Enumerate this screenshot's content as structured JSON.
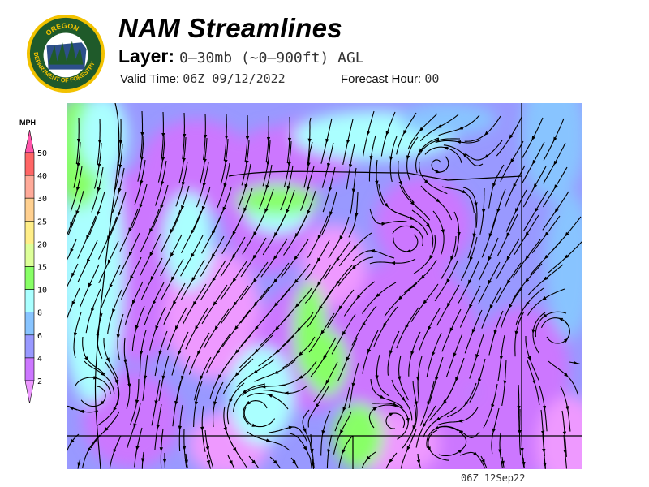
{
  "header": {
    "logo_text": "OREGON DEPARTMENT OF FORESTRY",
    "title": "NAM Streamlines",
    "layer_label": "Layer:",
    "layer_value": "0–30mb (~0–900ft) AGL",
    "valid_label": "Valid Time:",
    "valid_value": "06Z 09/12/2022",
    "forecast_label": "Forecast Hour:",
    "forecast_value": "00"
  },
  "colorbar": {
    "unit": "MPH",
    "labels": [
      "50",
      "40",
      "30",
      "25",
      "20",
      "15",
      "10",
      "8",
      "6",
      "4",
      "2"
    ],
    "colors": {
      "over": "#ff55aa",
      "40-50": "#ff6666",
      "30-40": "#ffaa99",
      "25-30": "#ffd090",
      "20-25": "#ffee88",
      "15-20": "#ddff99",
      "10-15": "#88ff66",
      "8-10": "#aaffff",
      "6-8": "#88c4ff",
      "4-6": "#9999ff",
      "2-4": "#cc77ff",
      "under": "#ee99ff"
    }
  },
  "map": {
    "stamp": "06Z 12Sep22"
  }
}
